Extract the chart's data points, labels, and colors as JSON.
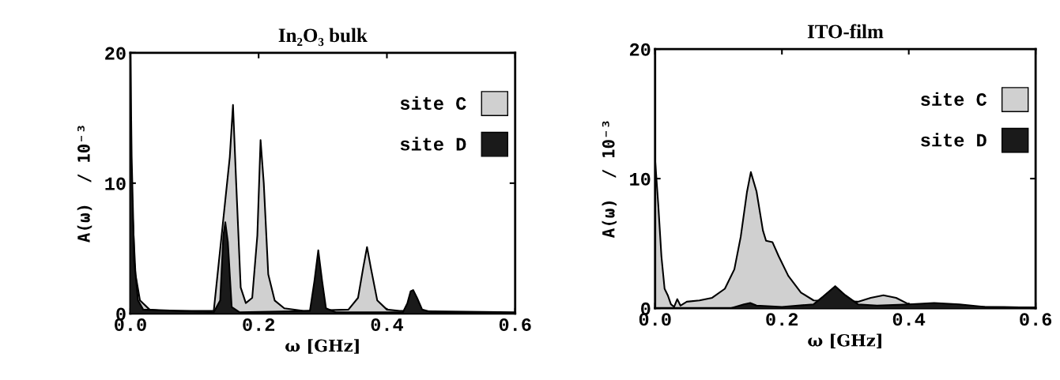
{
  "chart_data": [
    {
      "type": "area",
      "title": "In₂O₃ bulk",
      "xlabel": "ω [GHz]",
      "ylabel": "A(ω)  / 10⁻³",
      "xlim": [
        0,
        0.6
      ],
      "ylim": [
        0,
        20
      ],
      "xticks": [
        {
          "value": 0,
          "label": "0.0"
        },
        0.2,
        0.4,
        0.6
      ],
      "yticks": [
        0,
        10,
        20
      ],
      "legend": "upper right",
      "grid": false,
      "series": [
        {
          "name": "site C",
          "color": "#d0d0d0",
          "x": [
            0,
            0.003,
            0.008,
            0.015,
            0.03,
            0.05,
            0.13,
            0.155,
            0.16,
            0.165,
            0.172,
            0.18,
            0.19,
            0.198,
            0.203,
            0.208,
            0.215,
            0.225,
            0.24,
            0.27,
            0.34,
            0.355,
            0.363,
            0.369,
            0.375,
            0.385,
            0.4,
            0.42,
            0.6
          ],
          "values": [
            14,
            8,
            3,
            1,
            0.3,
            0.2,
            0.2,
            12,
            16,
            10,
            2,
            0.8,
            1.2,
            6,
            13.3,
            10,
            3,
            1,
            0.4,
            0.2,
            0.3,
            1.2,
            3.5,
            5.1,
            3.5,
            1,
            0.3,
            0.2,
            0.1
          ]
        },
        {
          "name": "site D",
          "color": "#1a1a1a",
          "x": [
            0,
            0.002,
            0.006,
            0.012,
            0.02,
            0.13,
            0.14,
            0.145,
            0.148,
            0.152,
            0.158,
            0.17,
            0.28,
            0.287,
            0.293,
            0.299,
            0.305,
            0.32,
            0.425,
            0.432,
            0.437,
            0.441,
            0.447,
            0.455,
            0.47,
            0.6
          ],
          "values": [
            20,
            12,
            4,
            1,
            0.3,
            0.1,
            1,
            6,
            7,
            5.5,
            0.5,
            0.1,
            0.2,
            2.5,
            4.85,
            2.5,
            0.4,
            0.1,
            0.1,
            0.8,
            1.7,
            1.8,
            1.2,
            0.3,
            0.1,
            0.05
          ]
        }
      ]
    },
    {
      "type": "area",
      "title": "ITO-film",
      "xlabel": "ω [GHz]",
      "ylabel": "A(ω)  / 10⁻³",
      "xlim": [
        0,
        0.6
      ],
      "ylim": [
        0,
        20
      ],
      "xticks": [
        {
          "value": 0,
          "label": "0.0"
        },
        0.2,
        0.4,
        0.6
      ],
      "yticks": [
        0,
        10,
        20
      ],
      "legend": "upper right",
      "grid": false,
      "series": [
        {
          "name": "site C",
          "color": "#d0d0d0",
          "x": [
            0,
            0.005,
            0.01,
            0.015,
            0.02,
            0.025,
            0.03,
            0.035,
            0.04,
            0.05,
            0.07,
            0.09,
            0.11,
            0.125,
            0.135,
            0.145,
            0.151,
            0.16,
            0.17,
            0.175,
            0.185,
            0.195,
            0.21,
            0.23,
            0.25,
            0.32,
            0.34,
            0.36,
            0.38,
            0.4,
            0.43,
            0.5,
            0.6
          ],
          "values": [
            11.5,
            8,
            4,
            1.5,
            1,
            0.3,
            0.1,
            0.7,
            0.2,
            0.5,
            0.6,
            0.8,
            1.5,
            3,
            5.5,
            9,
            10.5,
            9,
            6,
            5.2,
            5.1,
            4,
            2.5,
            1.2,
            0.6,
            0.5,
            0.8,
            1.0,
            0.8,
            0.3,
            0.2,
            0.1,
            0.05
          ]
        },
        {
          "name": "site D",
          "color": "#1a1a1a",
          "x": [
            0,
            0.12,
            0.14,
            0.15,
            0.16,
            0.2,
            0.25,
            0.265,
            0.284,
            0.3,
            0.32,
            0.35,
            0.4,
            0.44,
            0.48,
            0.52,
            0.6
          ],
          "values": [
            0,
            0,
            0.3,
            0.4,
            0.2,
            0.1,
            0.3,
            0.9,
            1.7,
            1.0,
            0.3,
            0.2,
            0.3,
            0.4,
            0.3,
            0.1,
            0.05
          ]
        }
      ]
    }
  ]
}
